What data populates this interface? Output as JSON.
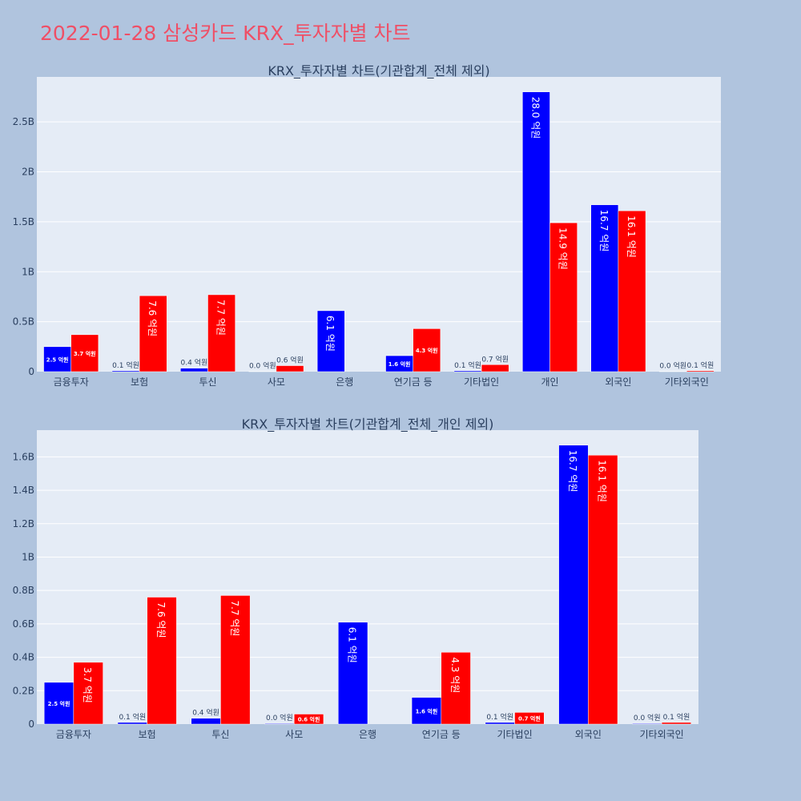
{
  "page": {
    "title": "2022-01-28 삼성카드 KRX_투자자별 차트"
  },
  "colors": {
    "background": "#b0c4de",
    "plot": "#e5ecf6",
    "buy": "#0000ff",
    "sell": "#ff0000",
    "title": "#ef4f66",
    "text": "#2a3f5f"
  },
  "chart_data": [
    {
      "type": "bar",
      "title": "KRX_투자자별 차트(기관합계_전체 제외)",
      "categories": [
        "금융투자",
        "보험",
        "투신",
        "사모",
        "은행",
        "연기금 등",
        "기타법인",
        "개인",
        "외국인",
        "기타외국인"
      ],
      "series": [
        {
          "color": "#0000ff",
          "values": [
            250000000,
            10000000,
            35000000,
            4000000,
            610000000,
            160000000,
            10000000,
            2800000000,
            1670000000,
            4000000
          ],
          "labels": [
            "2.5 억원",
            "0.1 억원",
            "0.4 억원",
            "0.0 억원",
            "6.1 억원",
            "1.6 억원",
            "0.1 억원",
            "28.0 억원",
            "16.7 억원",
            "0.0 억원"
          ]
        },
        {
          "color": "#ff0000",
          "values": [
            370000000,
            760000000,
            770000000,
            60000000,
            0,
            430000000,
            70000000,
            1490000000,
            1610000000,
            10000000
          ],
          "labels": [
            "3.7 억원",
            "7.6 억원",
            "7.7 억원",
            "0.6 억원",
            "",
            "4.3 억원",
            "0.7 억원",
            "14.9 억원",
            "16.1 억원",
            "0.1 억원"
          ]
        }
      ],
      "yticks": [
        0,
        500000000,
        1000000000,
        1500000000,
        2000000000,
        2500000000
      ],
      "ytick_labels": [
        "0",
        "0.5B",
        "1B",
        "1.5B",
        "2B",
        "2.5B"
      ],
      "ylim": [
        0,
        2950000000
      ],
      "grid": true
    },
    {
      "type": "bar",
      "title": "KRX_투자자별 차트(기관합계_전체_개인 제외)",
      "categories": [
        "금융투자",
        "보험",
        "투신",
        "사모",
        "은행",
        "연기금 등",
        "기타법인",
        "외국인",
        "기타외국인"
      ],
      "series": [
        {
          "color": "#0000ff",
          "values": [
            250000000,
            10000000,
            35000000,
            4000000,
            610000000,
            160000000,
            10000000,
            1670000000,
            4000000
          ],
          "labels": [
            "2.5 억원",
            "0.1 억원",
            "0.4 억원",
            "0.0 억원",
            "6.1 억원",
            "1.6 억원",
            "0.1 억원",
            "16.7 억원",
            "0.0 억원"
          ]
        },
        {
          "color": "#ff0000",
          "values": [
            370000000,
            760000000,
            770000000,
            60000000,
            0,
            430000000,
            70000000,
            1610000000,
            10000000
          ],
          "labels": [
            "3.7 억원",
            "7.6 억원",
            "7.7 억원",
            "0.6 억원",
            "",
            "4.3 억원",
            "0.7 억원",
            "16.1 억원",
            "0.1 억원"
          ]
        }
      ],
      "yticks": [
        0,
        200000000,
        400000000,
        600000000,
        800000000,
        1000000000,
        1200000000,
        1400000000,
        1600000000
      ],
      "ytick_labels": [
        "0",
        "0.2B",
        "0.4B",
        "0.6B",
        "0.8B",
        "1B",
        "1.2B",
        "1.4B",
        "1.6B"
      ],
      "ylim": [
        0,
        1760000000
      ],
      "grid": true
    }
  ]
}
